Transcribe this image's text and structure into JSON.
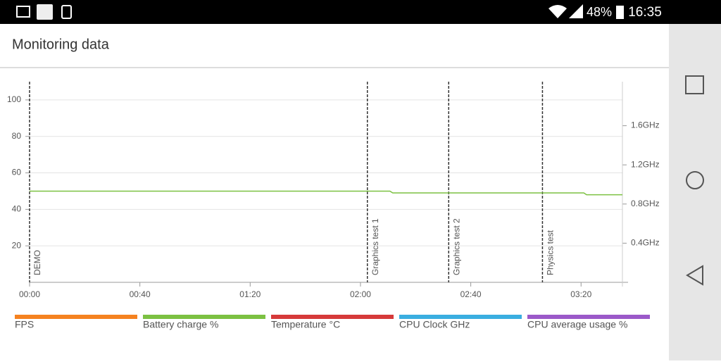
{
  "status_bar": {
    "battery": "48%",
    "time": "16:35"
  },
  "header": {
    "title": "Monitoring data"
  },
  "chart_data": {
    "type": "line",
    "x": [
      0,
      130.7,
      131.7,
      201,
      202,
      215
    ],
    "xlim": [
      0,
      215
    ],
    "xticks": [
      {
        "value": 0,
        "label": "00:00"
      },
      {
        "value": 40,
        "label": "00:40"
      },
      {
        "value": 80,
        "label": "01:20"
      },
      {
        "value": 120,
        "label": "02:00"
      },
      {
        "value": 160,
        "label": "02:40"
      },
      {
        "value": 200,
        "label": "03:20"
      }
    ],
    "ylim": [
      0,
      110
    ],
    "yticks": [
      20,
      40,
      60,
      80,
      100
    ],
    "y2lim": [
      0,
      2.05
    ],
    "y2ticks": [
      {
        "value": 0.4,
        "label": "0.4GHz"
      },
      {
        "value": 0.8,
        "label": "0.8GHz"
      },
      {
        "value": 1.2,
        "label": "1.2GHz"
      },
      {
        "value": 1.6,
        "label": "1.6GHz"
      }
    ],
    "grid": true,
    "markers": [
      {
        "x": 0,
        "label": "DEMO"
      },
      {
        "x": 122.5,
        "label": "Graphics test 1"
      },
      {
        "x": 152,
        "label": "Graphics test 2"
      },
      {
        "x": 186,
        "label": "Physics test"
      }
    ],
    "series": [
      {
        "name": "FPS",
        "color": "#f58220",
        "values": [
          null,
          null,
          null,
          null,
          null,
          null
        ]
      },
      {
        "name": "Battery charge %",
        "color": "#7cc142",
        "values": [
          50,
          50,
          49,
          49,
          48,
          48
        ]
      },
      {
        "name": "Temperature °C",
        "color": "#d63a3a",
        "values": [
          null,
          null,
          null,
          null,
          null,
          null
        ]
      },
      {
        "name": "CPU Clock GHz",
        "color": "#3aaee0",
        "axis": "y2",
        "values": [
          null,
          null,
          null,
          null,
          null,
          null
        ]
      },
      {
        "name": "CPU average usage %",
        "color": "#9b59c9",
        "values": [
          null,
          null,
          null,
          null,
          null,
          null
        ]
      }
    ]
  }
}
